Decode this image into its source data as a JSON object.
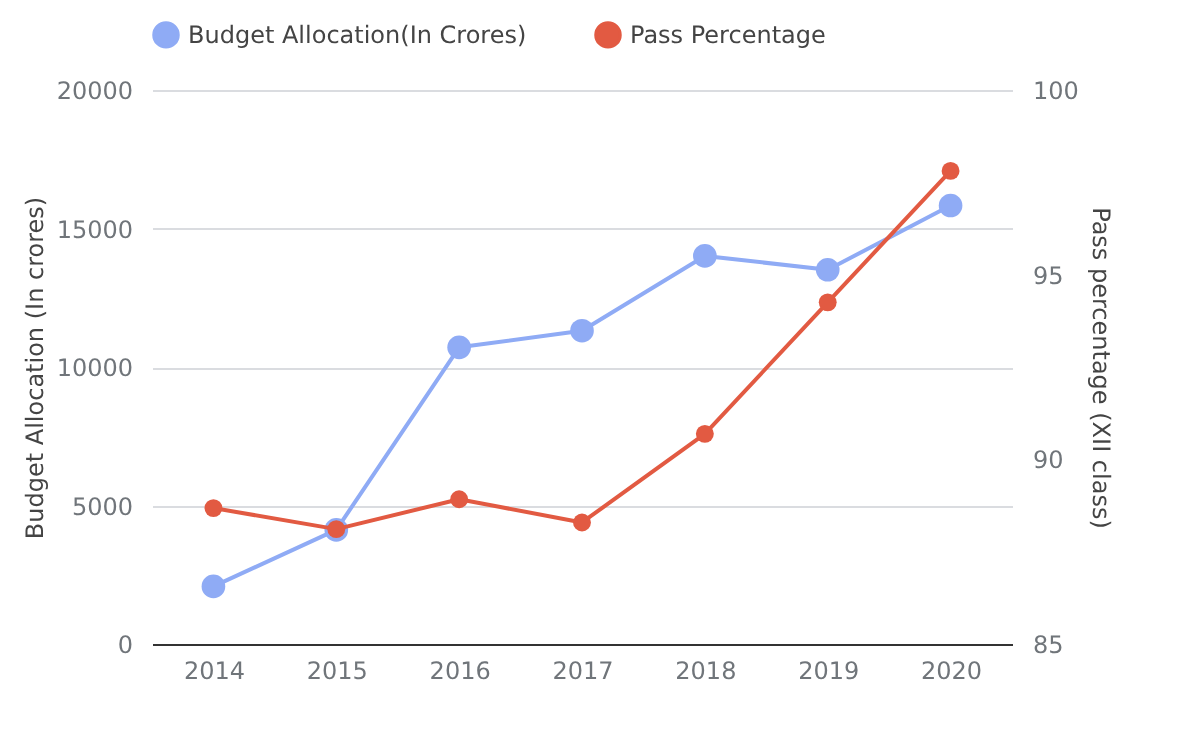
{
  "chart_data": {
    "type": "line",
    "categories": [
      "2014",
      "2015",
      "2016",
      "2017",
      "2018",
      "2019",
      "2020"
    ],
    "series": [
      {
        "name": "Budget Allocation(In Crores)",
        "color": "#8fabf5",
        "values": [
          2080,
          4120,
          10710,
          11310,
          14010,
          13510,
          15830
        ]
      },
      {
        "name": "Pass Percentage",
        "color": "#e25a42",
        "axis": "y2",
        "values": [
          88.68,
          88.11,
          88.92,
          88.29,
          90.69,
          94.25,
          97.81
        ]
      }
    ],
    "ylabel": "Budget Allocation (In crores)",
    "y2label": "Pass percentage (XII class)",
    "ylim": [
      0,
      20000
    ],
    "yticks": [
      0,
      5000,
      10000,
      15000,
      20000
    ],
    "y2lim": [
      85,
      100
    ],
    "y2ticks": [
      85,
      90,
      95,
      100
    ],
    "grid": "y",
    "legend": "top",
    "marker": "circle",
    "line_style": "solid"
  }
}
